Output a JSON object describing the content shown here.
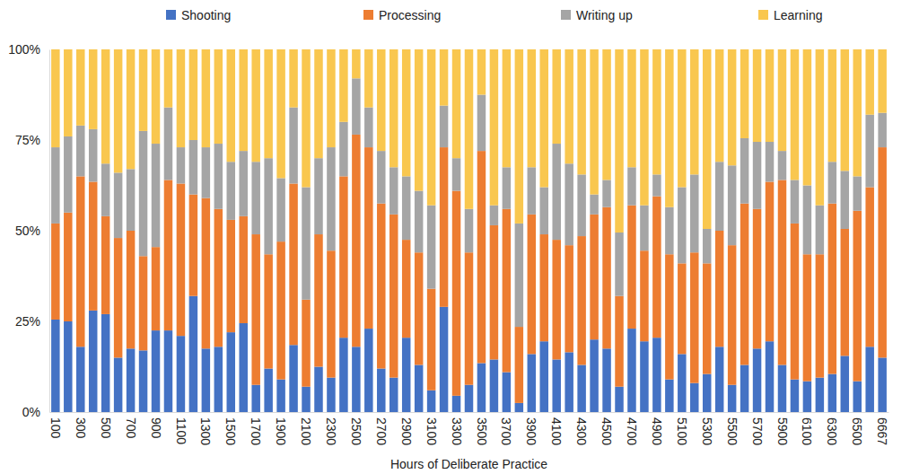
{
  "chart_data": {
    "type": "bar",
    "stacked": true,
    "grid": false,
    "legend": "top",
    "x_label": "Hours of Deliberate Practice",
    "categories": [
      "100",
      null,
      "300",
      null,
      "500",
      null,
      "700",
      null,
      "900",
      null,
      "1100",
      null,
      "1300",
      null,
      "1500",
      null,
      "1700",
      null,
      "1900",
      null,
      "2100",
      null,
      "2300",
      null,
      "2500",
      null,
      "2700",
      null,
      "2900",
      null,
      "3100",
      null,
      "3300",
      null,
      "3500",
      null,
      "3700",
      null,
      "3900",
      null,
      "4100",
      null,
      "4300",
      null,
      "4500",
      null,
      "4700",
      null,
      "4900",
      null,
      "5100",
      null,
      "5300",
      null,
      "5500",
      null,
      "5700",
      null,
      "5900",
      null,
      "6100",
      null,
      "6300",
      null,
      "6500",
      null,
      "6667"
    ],
    "ylim": [
      0,
      100
    ],
    "yticks": [
      {
        "value": 0,
        "label": "0%"
      },
      {
        "value": 25,
        "label": "25%"
      },
      {
        "value": 50,
        "label": "50%"
      },
      {
        "value": 75,
        "label": "75%"
      },
      {
        "value": 100,
        "label": "100%"
      }
    ],
    "series": [
      {
        "name": "Shooting",
        "color": "#4472C4",
        "values": [
          25.5,
          25,
          18,
          28,
          27,
          15,
          17.5,
          17,
          22.5,
          22.5,
          21,
          32,
          17.5,
          18,
          22,
          24.5,
          7.5,
          12,
          9,
          18.5,
          7,
          12.5,
          9.5,
          20.5,
          18,
          23,
          12,
          9.5,
          20.5,
          13,
          6,
          29,
          4.5,
          7.5,
          13.5,
          14.5,
          11,
          2.5,
          16,
          19.5,
          14.5,
          16.5,
          13,
          20,
          17.5,
          7,
          23,
          19.5,
          20.5,
          9,
          16,
          8,
          10.5,
          18,
          7.5,
          13,
          17.5,
          19.5,
          13,
          9,
          8.5,
          9.5,
          10.5,
          15.5,
          8.5,
          18,
          15
        ]
      },
      {
        "name": "Processing",
        "color": "#ED7D31",
        "values": [
          26.5,
          30,
          47,
          35.5,
          27,
          33,
          32.5,
          26,
          23,
          41.5,
          42,
          28,
          41.5,
          38,
          31,
          29.5,
          41.5,
          31.5,
          38,
          44.5,
          24,
          36.5,
          35,
          44.5,
          58.5,
          50,
          45.5,
          45,
          27,
          31,
          28,
          44,
          56.5,
          36.5,
          58.5,
          37,
          45,
          21,
          38.5,
          29.5,
          33,
          29.5,
          35.5,
          34.5,
          39,
          25,
          34,
          25,
          39,
          34.5,
          25,
          36,
          30.5,
          32,
          38.5,
          44.5,
          38.5,
          44,
          51,
          43,
          35,
          34,
          47,
          35,
          47,
          44,
          58
        ]
      },
      {
        "name": "Writing up",
        "color": "#A5A5A5",
        "values": [
          21,
          21,
          14,
          14.5,
          14.5,
          18,
          17,
          34.5,
          28.5,
          20,
          10,
          15,
          14,
          18,
          16,
          18,
          20,
          26.5,
          17.5,
          21,
          31,
          21,
          28.5,
          15,
          15.5,
          11,
          14.5,
          13,
          17.5,
          17,
          23,
          11.5,
          9,
          12,
          15.5,
          5.5,
          11.5,
          28.5,
          13,
          13,
          26.5,
          22.5,
          17,
          5.5,
          7.5,
          17.5,
          10.5,
          12.5,
          6,
          13,
          21,
          21.5,
          9.5,
          19,
          22,
          18,
          18.5,
          11,
          8,
          12,
          19,
          13.5,
          11.5,
          16,
          9.5,
          20,
          9.5
        ]
      },
      {
        "name": "Learning",
        "color": "#F9C74F",
        "values": [
          27,
          24,
          21,
          22,
          31.5,
          34,
          33,
          22.5,
          26,
          16,
          27,
          25,
          27,
          26,
          31,
          28,
          31,
          30,
          35.5,
          16,
          38,
          30,
          27,
          20,
          8,
          16,
          28,
          32.5,
          35,
          39,
          43,
          15.5,
          30,
          44,
          12.5,
          43,
          32.5,
          48,
          32.5,
          38,
          26,
          31.5,
          34.5,
          40,
          36,
          50.5,
          32.5,
          43,
          34.5,
          43.5,
          38,
          34.5,
          49.5,
          31,
          32,
          24.5,
          25.5,
          25.5,
          28,
          36,
          37.5,
          43,
          31,
          33.5,
          35,
          18,
          17.5
        ]
      }
    ]
  }
}
